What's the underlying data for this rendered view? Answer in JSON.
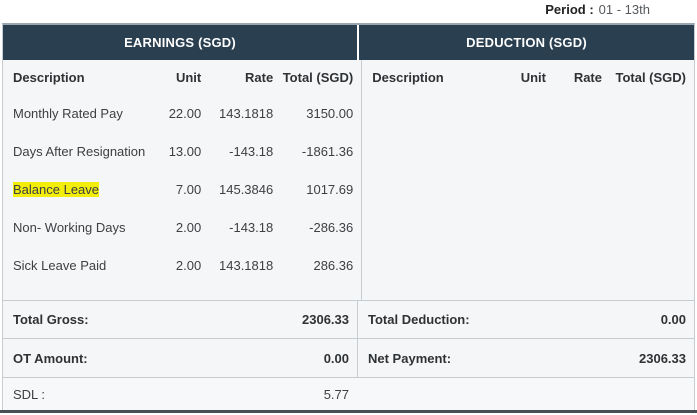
{
  "period": {
    "label": "Period :",
    "value": "01 - 13th"
  },
  "earnings": {
    "title": "EARNINGS (SGD)",
    "columns": [
      "Description",
      "Unit",
      "Rate",
      "Total (SGD)"
    ],
    "rows": [
      {
        "description": "Monthly Rated Pay",
        "unit": "22.00",
        "rate": "143.1818",
        "total": "3150.00",
        "highlight": false
      },
      {
        "description": "Days After Resignation",
        "unit": "13.00",
        "rate": "-143.18",
        "total": "-1861.36",
        "highlight": false
      },
      {
        "description": "Balance Leave",
        "unit": "7.00",
        "rate": "145.3846",
        "total": "1017.69",
        "highlight": true
      },
      {
        "description": "Non- Working Days",
        "unit": "2.00",
        "rate": "-143.18",
        "total": "-286.36",
        "highlight": false
      },
      {
        "description": "Sick Leave Paid",
        "unit": "2.00",
        "rate": "143.1818",
        "total": "286.36",
        "highlight": false
      }
    ],
    "totals": [
      {
        "label": "Total Gross:",
        "value": "2306.33"
      },
      {
        "label": "OT Amount:",
        "value": "0.00"
      }
    ]
  },
  "deductions": {
    "title": "DEDUCTION (SGD)",
    "columns": [
      "Description",
      "Unit",
      "Rate",
      "Total (SGD)"
    ],
    "rows": [],
    "totals": [
      {
        "label": "Total Deduction:",
        "value": "0.00"
      },
      {
        "label": "Net Payment:",
        "value": "2306.33"
      }
    ]
  },
  "footer": {
    "sdl_label": "SDL :",
    "sdl_value": "5.77"
  },
  "colors": {
    "header_bg": "#2a3f50",
    "highlight": "#f2ee0a",
    "body_bg": "#f5f6f7",
    "bottom_bar": "#474e54"
  }
}
